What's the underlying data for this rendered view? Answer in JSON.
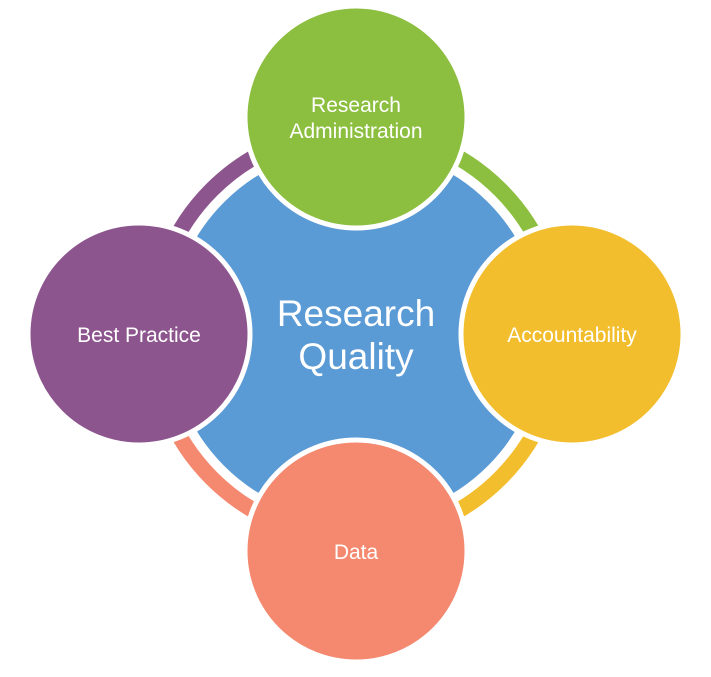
{
  "diagram": {
    "center": {
      "lines": [
        "Research",
        "Quality"
      ],
      "color": "#5b9bd5"
    },
    "nodes": [
      {
        "id": "research-administration",
        "lines": [
          "Research",
          "Administration"
        ],
        "color": "#8cbf3f"
      },
      {
        "id": "accountability",
        "lines": [
          "Accountability"
        ],
        "color": "#f2be2d"
      },
      {
        "id": "data",
        "lines": [
          "Data"
        ],
        "color": "#f4896f"
      },
      {
        "id": "best-practice",
        "lines": [
          "Best Practice"
        ],
        "color": "#8d558e"
      }
    ],
    "connector_colors": {
      "top_right": "#8cbf3f",
      "bottom_right": "#f2be2d",
      "bottom_left": "#f4896f",
      "top_left": "#8d558e"
    }
  }
}
